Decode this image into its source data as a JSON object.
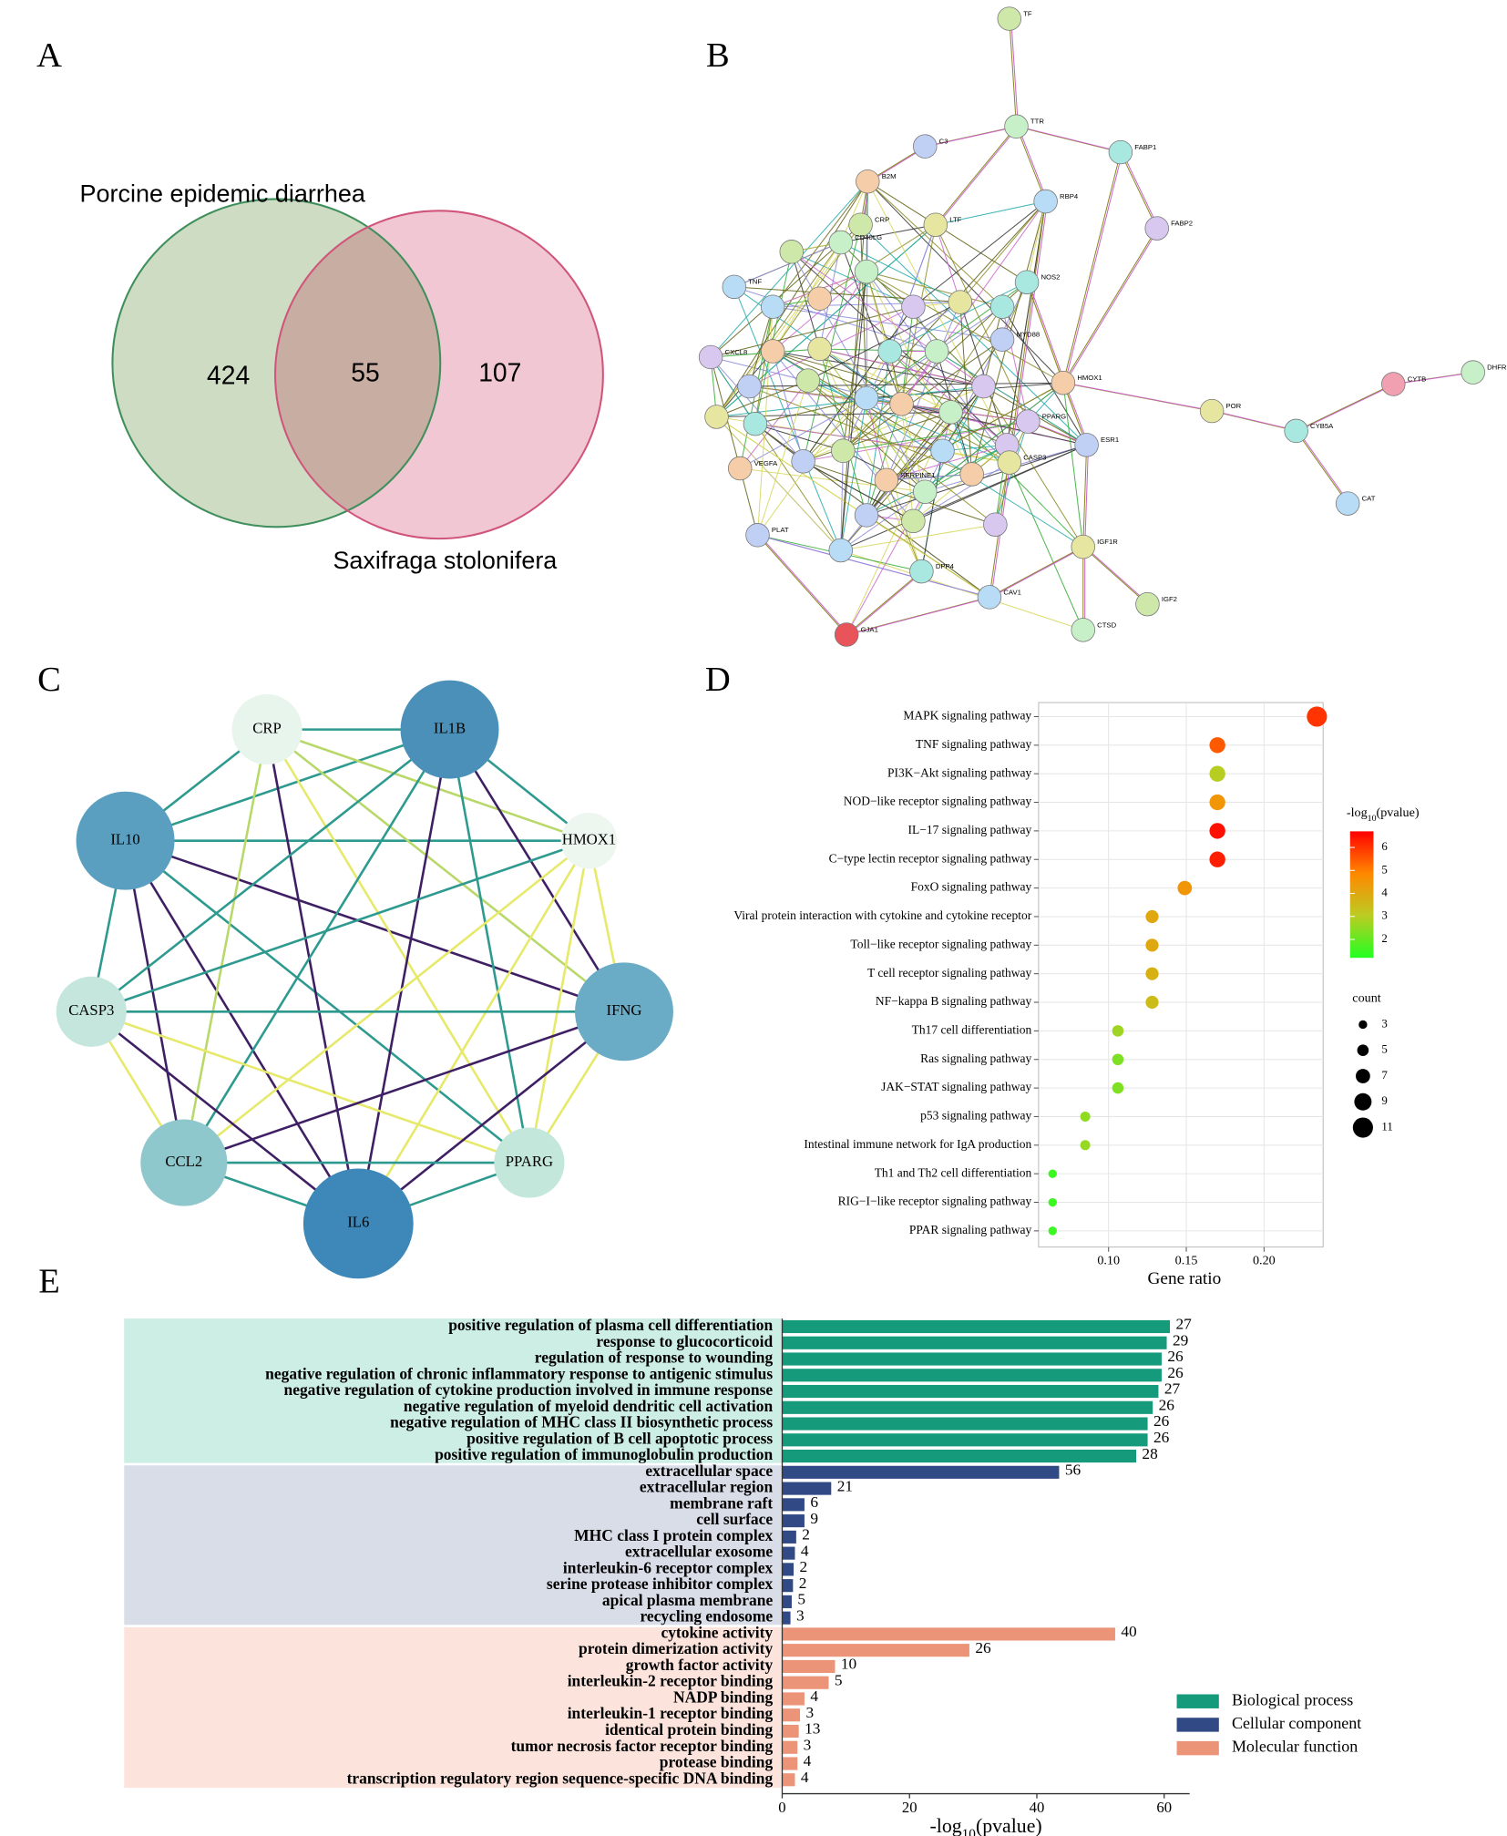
{
  "panels": [
    "A",
    "B",
    "C",
    "D",
    "E"
  ],
  "chart_data": [
    {
      "type": "venn",
      "sets": [
        {
          "name": "Porcine epidemic diarrhea",
          "color": "#cddcc3",
          "edge": "#3f8f5c"
        },
        {
          "name": "Saxifraga stolonifera",
          "color": "#f1c7d3",
          "edge": "#d0557a"
        }
      ],
      "overlap_color": "#c8ada3",
      "values": [
        424,
        55,
        107
      ]
    },
    {
      "type": "network",
      "nodes": [
        "TF",
        "TTR",
        "FABP1",
        "RBP4",
        "FABP2",
        "C3",
        "B2M",
        "LTF",
        "CRP",
        "CD40LG",
        "NOS2",
        "TNF",
        "CXCL8",
        "MYD88",
        "HMOX1",
        "POR",
        "CYTB",
        "DHFR",
        "CYB5A",
        "CAT",
        "PPARG",
        "ESR1",
        "VEGFA",
        "IGF1R",
        "IGF2",
        "CTSD",
        "DPP4",
        "CAV1",
        "GJA1",
        "PLAT",
        "SERPINE1",
        "CASP3"
      ]
    },
    {
      "type": "network",
      "nodes": [
        "CRP",
        "IL1B",
        "IL10",
        "HMOX1",
        "CASP3",
        "IFNG",
        "CCL2",
        "PPARG",
        "IL6"
      ]
    },
    {
      "type": "dot",
      "categories": [
        "MAPK signaling pathway",
        "TNF signaling pathway",
        "PI3K−Akt signaling pathway",
        "NOD−like receptor signaling pathway",
        "IL−17 signaling pathway",
        "C−type lectin receptor signaling pathway",
        "FoxO signaling pathway",
        "Viral protein interaction with cytokine and cytokine receptor",
        "Toll−like receptor signaling pathway",
        "T cell receptor signaling pathway",
        "NF−kappa B signaling pathway",
        "Th17 cell differentiation",
        "Ras signaling pathway",
        "JAK−STAT signaling pathway",
        "p53 signaling pathway",
        "Intestinal immune network for IgA production",
        "Th1 and Th2 cell differentiation",
        "RIG−I−like receptor signaling pathway",
        "PPAR signaling pathway"
      ],
      "values": [
        0.234,
        0.17,
        0.17,
        0.17,
        0.17,
        0.17,
        0.149,
        0.128,
        0.128,
        0.128,
        0.128,
        0.106,
        0.106,
        0.106,
        0.085,
        0.085,
        0.064,
        0.064,
        0.064
      ],
      "counts": [
        11,
        8,
        8,
        8,
        8,
        8,
        7,
        6,
        6,
        6,
        6,
        5,
        5,
        5,
        4,
        4,
        3,
        3,
        3
      ],
      "color_values": [
        6.0,
        5.5,
        3.0,
        4.5,
        6.5,
        6.3,
        4.5,
        4.0,
        4.0,
        3.8,
        3.5,
        2.7,
        2.3,
        2.3,
        2.5,
        2.6,
        1.5,
        1.5,
        1.5
      ],
      "xlabel": "Gene ratio",
      "xlim": [
        0.055,
        0.238
      ],
      "xticks": [
        {
          "value": 0.1,
          "label": "0.10"
        },
        {
          "value": 0.15,
          "label": "0.15"
        },
        {
          "value": 0.2,
          "label": "0.20"
        }
      ],
      "grid": true,
      "color_title": [
        "-log",
        "10",
        "(pvalue)"
      ],
      "colorscale": [
        "#22ff22",
        "#bbcc22",
        "#ff8800",
        "#ff0000"
      ],
      "clim": [
        1.2,
        6.7
      ],
      "cticks": [
        2,
        3,
        4,
        5,
        6
      ],
      "size_title": "count",
      "size_ticks": [
        3,
        5,
        7,
        9,
        11
      ]
    },
    {
      "type": "bar",
      "orientation": "horizontal",
      "series": [
        {
          "name": "Biological process",
          "color": "#159a7c",
          "band_color": "#cdeee4",
          "categories": [
            "positive regulation of plasma cell differentiation",
            "response to glucocorticoid",
            "regulation of response to wounding",
            "negative regulation of chronic inflammatory response to antigenic stimulus",
            "negative regulation of cytokine production involved in immune response",
            "negative regulation of myeloid dendritic cell activation",
            "negative regulation of MHC class II biosynthetic process",
            "positive regulation of B cell apoptotic process",
            "positive regulation of immunoglobulin production"
          ],
          "values": [
            60.9,
            60.4,
            59.6,
            59.6,
            59.1,
            58.2,
            57.4,
            57.4,
            55.6
          ],
          "counts": [
            27,
            29,
            26,
            26,
            27,
            26,
            26,
            26,
            28
          ]
        },
        {
          "name": "Cellular component",
          "color": "#314a86",
          "band_color": "#d9dde8",
          "categories": [
            "extracellular space",
            "extracellular region",
            "membrane raft",
            "cell surface",
            "MHC class I protein complex",
            "extracellular exosome",
            "interleukin-6 receptor complex",
            "serine protease inhibitor complex",
            "apical plasma membrane",
            "recycling endosome"
          ],
          "values": [
            43.5,
            7.7,
            3.5,
            3.5,
            2.2,
            2.0,
            1.8,
            1.7,
            1.5,
            1.3
          ],
          "counts": [
            56,
            21,
            6,
            9,
            2,
            4,
            2,
            2,
            5,
            3
          ]
        },
        {
          "name": "Molecular function",
          "color": "#eb9478",
          "band_color": "#fce3dc",
          "categories": [
            "cytokine activity",
            "protein dimerization activity",
            "growth factor activity",
            "interleukin-2 receptor binding",
            "NADP binding",
            "interleukin-1 receptor binding",
            "identical protein binding",
            "tumor necrosis factor receptor binding",
            "protease binding",
            "transcription regulatory region sequence-specific DNA binding"
          ],
          "values": [
            52.3,
            29.4,
            8.3,
            7.3,
            3.5,
            2.8,
            2.6,
            2.4,
            2.4,
            2.0
          ],
          "counts": [
            40,
            26,
            10,
            5,
            4,
            3,
            13,
            3,
            4,
            4
          ]
        }
      ],
      "xlabel": [
        "-log",
        "10",
        "(pvalue)"
      ],
      "xlim": [
        0,
        64
      ],
      "xticks": [
        0,
        20,
        40,
        60
      ],
      "legend": "bottom-right"
    }
  ]
}
